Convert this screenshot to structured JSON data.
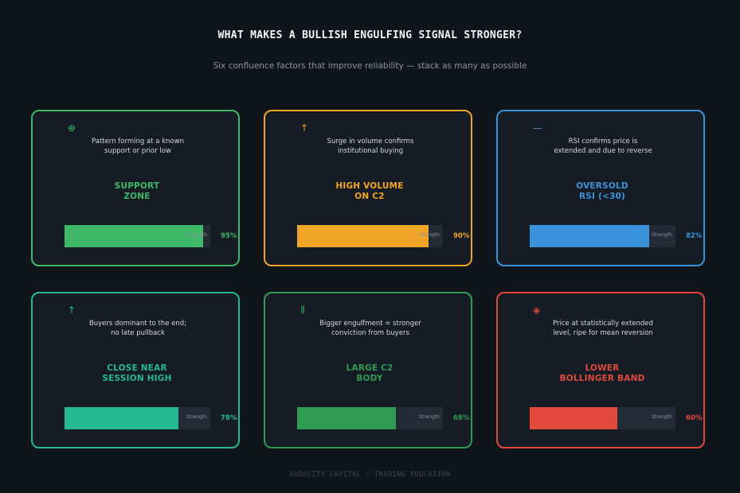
{
  "header": {
    "title": "WHAT MAKES A BULLISH ENGULFING SIGNAL STRONGER?",
    "subtitle": "Six confluence factors that improve reliability — stack as many as possible"
  },
  "factors": [
    {
      "icon": "⊕",
      "icon_name": "target-icon",
      "description_line1": "Pattern forming at a known",
      "description_line2": "support or prior low",
      "name_line1": "SUPPORT",
      "name_line2": "ZONE",
      "bar_caption": "Strength",
      "strength": 0.95,
      "strength_label": "95%",
      "color": "#3fb868"
    },
    {
      "icon": "↑",
      "icon_name": "arrow-up-icon",
      "description_line1": "Surge in volume confirms",
      "description_line2": "institutional buying",
      "name_line1": "HIGH VOLUME",
      "name_line2": "ON C2",
      "bar_caption": "Strength",
      "strength": 0.9,
      "strength_label": "90%",
      "color": "#f0a428"
    },
    {
      "icon": "—",
      "icon_name": "dash-icon",
      "description_line1": "RSI confirms price is",
      "description_line2": "extended and due to reverse",
      "name_line1": "OVERSOLD",
      "name_line2": "RSI (<30)",
      "bar_caption": "Strength",
      "strength": 0.82,
      "strength_label": "82%",
      "color": "#3a93da"
    },
    {
      "icon": "↑",
      "icon_name": "arrow-up-icon",
      "description_line1": "Buyers dominant to the end;",
      "description_line2": "no late pullback",
      "name_line1": "CLOSE NEAR",
      "name_line2": "SESSION HIGH",
      "bar_caption": "Strength",
      "strength": 0.78,
      "strength_label": "78%",
      "color": "#26b893"
    },
    {
      "icon": "|||",
      "icon_name": "bars-icon",
      "description_line1": "Bigger engulfment = stronger",
      "description_line2": "conviction from buyers",
      "name_line1": "LARGE C2",
      "name_line2": "BODY",
      "bar_caption": "Strength",
      "strength": 0.68,
      "strength_label": "68%",
      "color": "#2e9a52"
    },
    {
      "icon": "◈",
      "icon_name": "diamond-icon",
      "description_line1": "Price at statistically extended",
      "description_line2": "level, ripe for mean reversion",
      "name_line1": "LOWER",
      "name_line2": "BOLLINGER BAND",
      "bar_caption": "Strength",
      "strength": 0.6,
      "strength_label": "60%",
      "color": "#e0483b"
    }
  ],
  "footer": {
    "text": "AUDACITY CAPITAL · TRADING EDUCATION"
  }
}
